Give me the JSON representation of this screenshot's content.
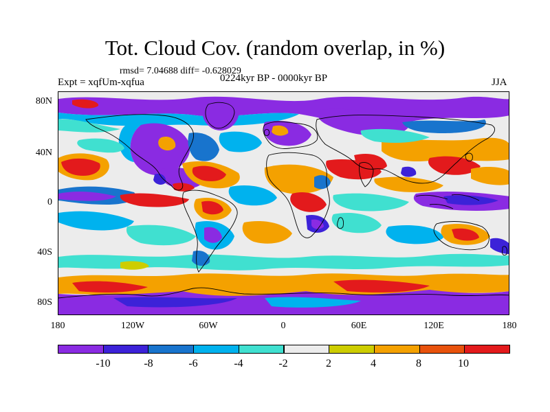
{
  "title": "Tot. Cloud Cov. (random overlap, in %)",
  "stats": "rmsd= 7.04688 diff= -0.628029",
  "experiment": "Expt = xqfUm-xqfua",
  "period": "0224kyr BP - 0000kyr BP",
  "season": "JJA",
  "axes": {
    "latitude_labels": [
      "80N",
      "40N",
      "0",
      "40S",
      "80S"
    ],
    "longitude_labels": [
      "180",
      "120W",
      "60W",
      "0",
      "60E",
      "120E",
      "180"
    ]
  },
  "colorbar": {
    "labels": [
      "-10",
      "-8",
      "-6",
      "-4",
      "-2",
      "2",
      "4",
      "8",
      "10"
    ],
    "colors": [
      "#8a2be2",
      "#3c22d8",
      "#1874cd",
      "#00b2ee",
      "#40e0d0",
      "#ececec",
      "#cdcd00",
      "#f4a100",
      "#e8520c",
      "#e31a1c"
    ]
  },
  "map": {
    "background": "#ececec",
    "land_outline_color": "#000000",
    "field_colors": {
      "strong_negative": "#8a2be2",
      "negative": "#3c22d8",
      "moderate_negative": "#1874cd",
      "weak_negative": "#00b2ee",
      "slight_negative": "#40e0d0",
      "neutral": "#ececec",
      "slight_positive": "#cdcd00",
      "weak_positive": "#f4a100",
      "moderate_positive": "#e8520c",
      "strong_positive": "#e31a1c"
    }
  }
}
